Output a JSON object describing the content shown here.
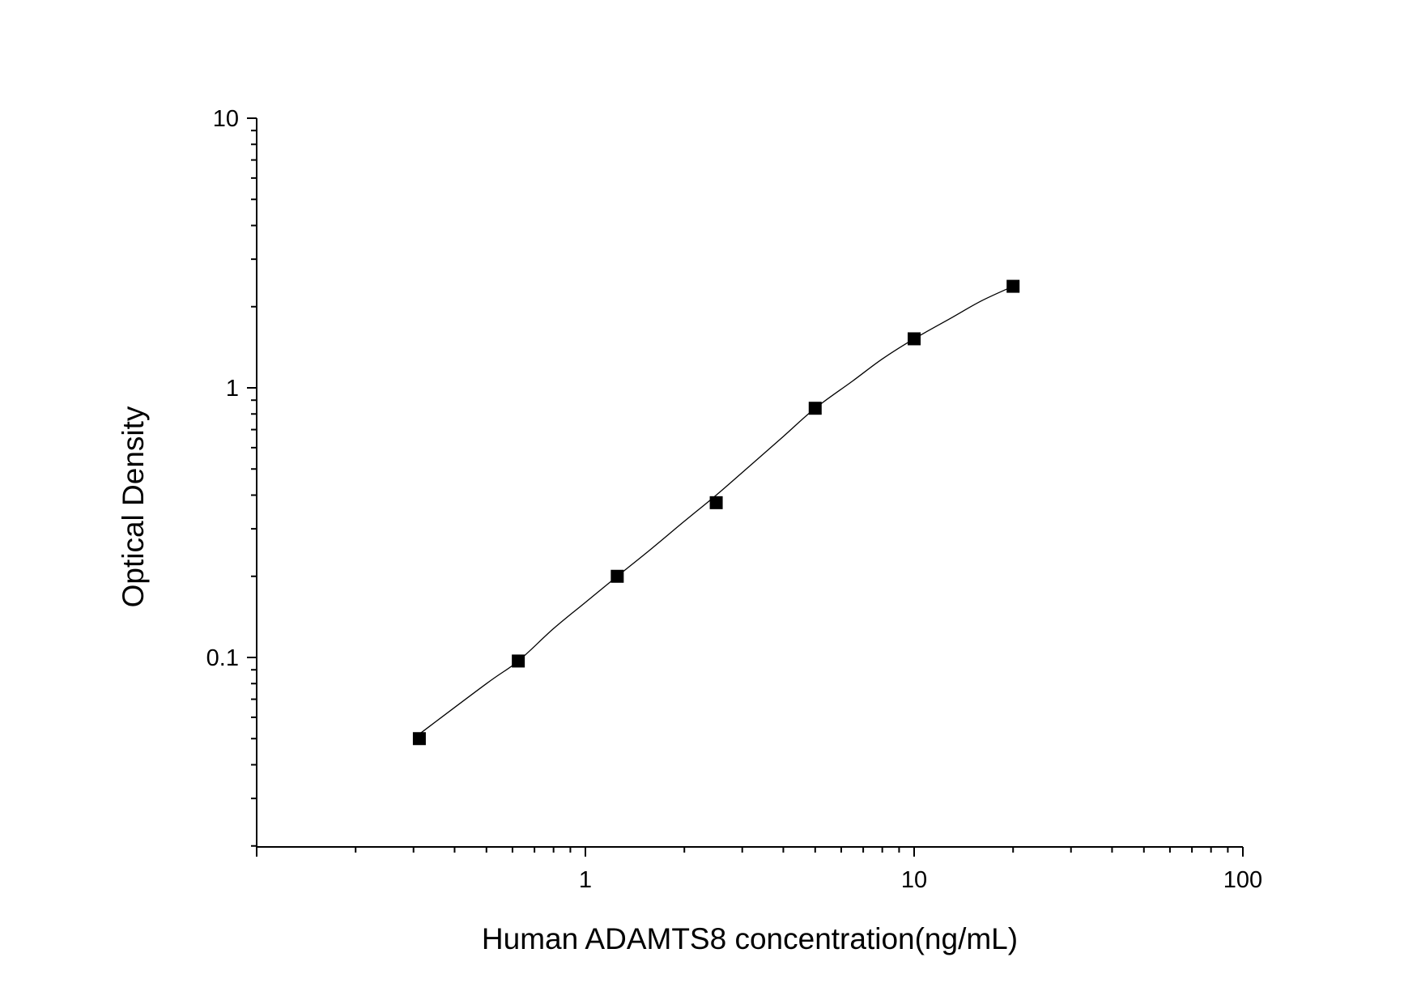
{
  "chart_data": {
    "type": "scatter",
    "title": "",
    "xlabel": "Human ADAMTS8 concentration(ng/mL)",
    "ylabel": "Optical Density",
    "x_scale": "log",
    "y_scale": "log",
    "xlim": [
      0.1,
      100
    ],
    "ylim": [
      0.02,
      10
    ],
    "x_tick_labels": [
      "1",
      "10",
      "100"
    ],
    "y_tick_labels": [
      "0.1",
      "1",
      "10"
    ],
    "grid": false,
    "legend": "none",
    "marker": "square",
    "marker_color": "#000000",
    "line_color": "#000000",
    "series": [
      {
        "x": [
          0.3125,
          0.625,
          1.25,
          2.5,
          5,
          10,
          20
        ],
        "y": [
          0.05,
          0.097,
          0.2,
          0.375,
          0.84,
          1.52,
          2.38
        ]
      }
    ],
    "fit_curve": {
      "x": [
        0.3125,
        0.5,
        0.625,
        0.8,
        1.0,
        1.25,
        1.6,
        2.0,
        2.5,
        3.2,
        4.0,
        5.0,
        6.5,
        8.0,
        10,
        13,
        16,
        20
      ],
      "y": [
        0.052,
        0.08,
        0.097,
        0.128,
        0.16,
        0.2,
        0.255,
        0.32,
        0.4,
        0.52,
        0.66,
        0.84,
        1.06,
        1.28,
        1.52,
        1.82,
        2.1,
        2.38
      ]
    }
  }
}
